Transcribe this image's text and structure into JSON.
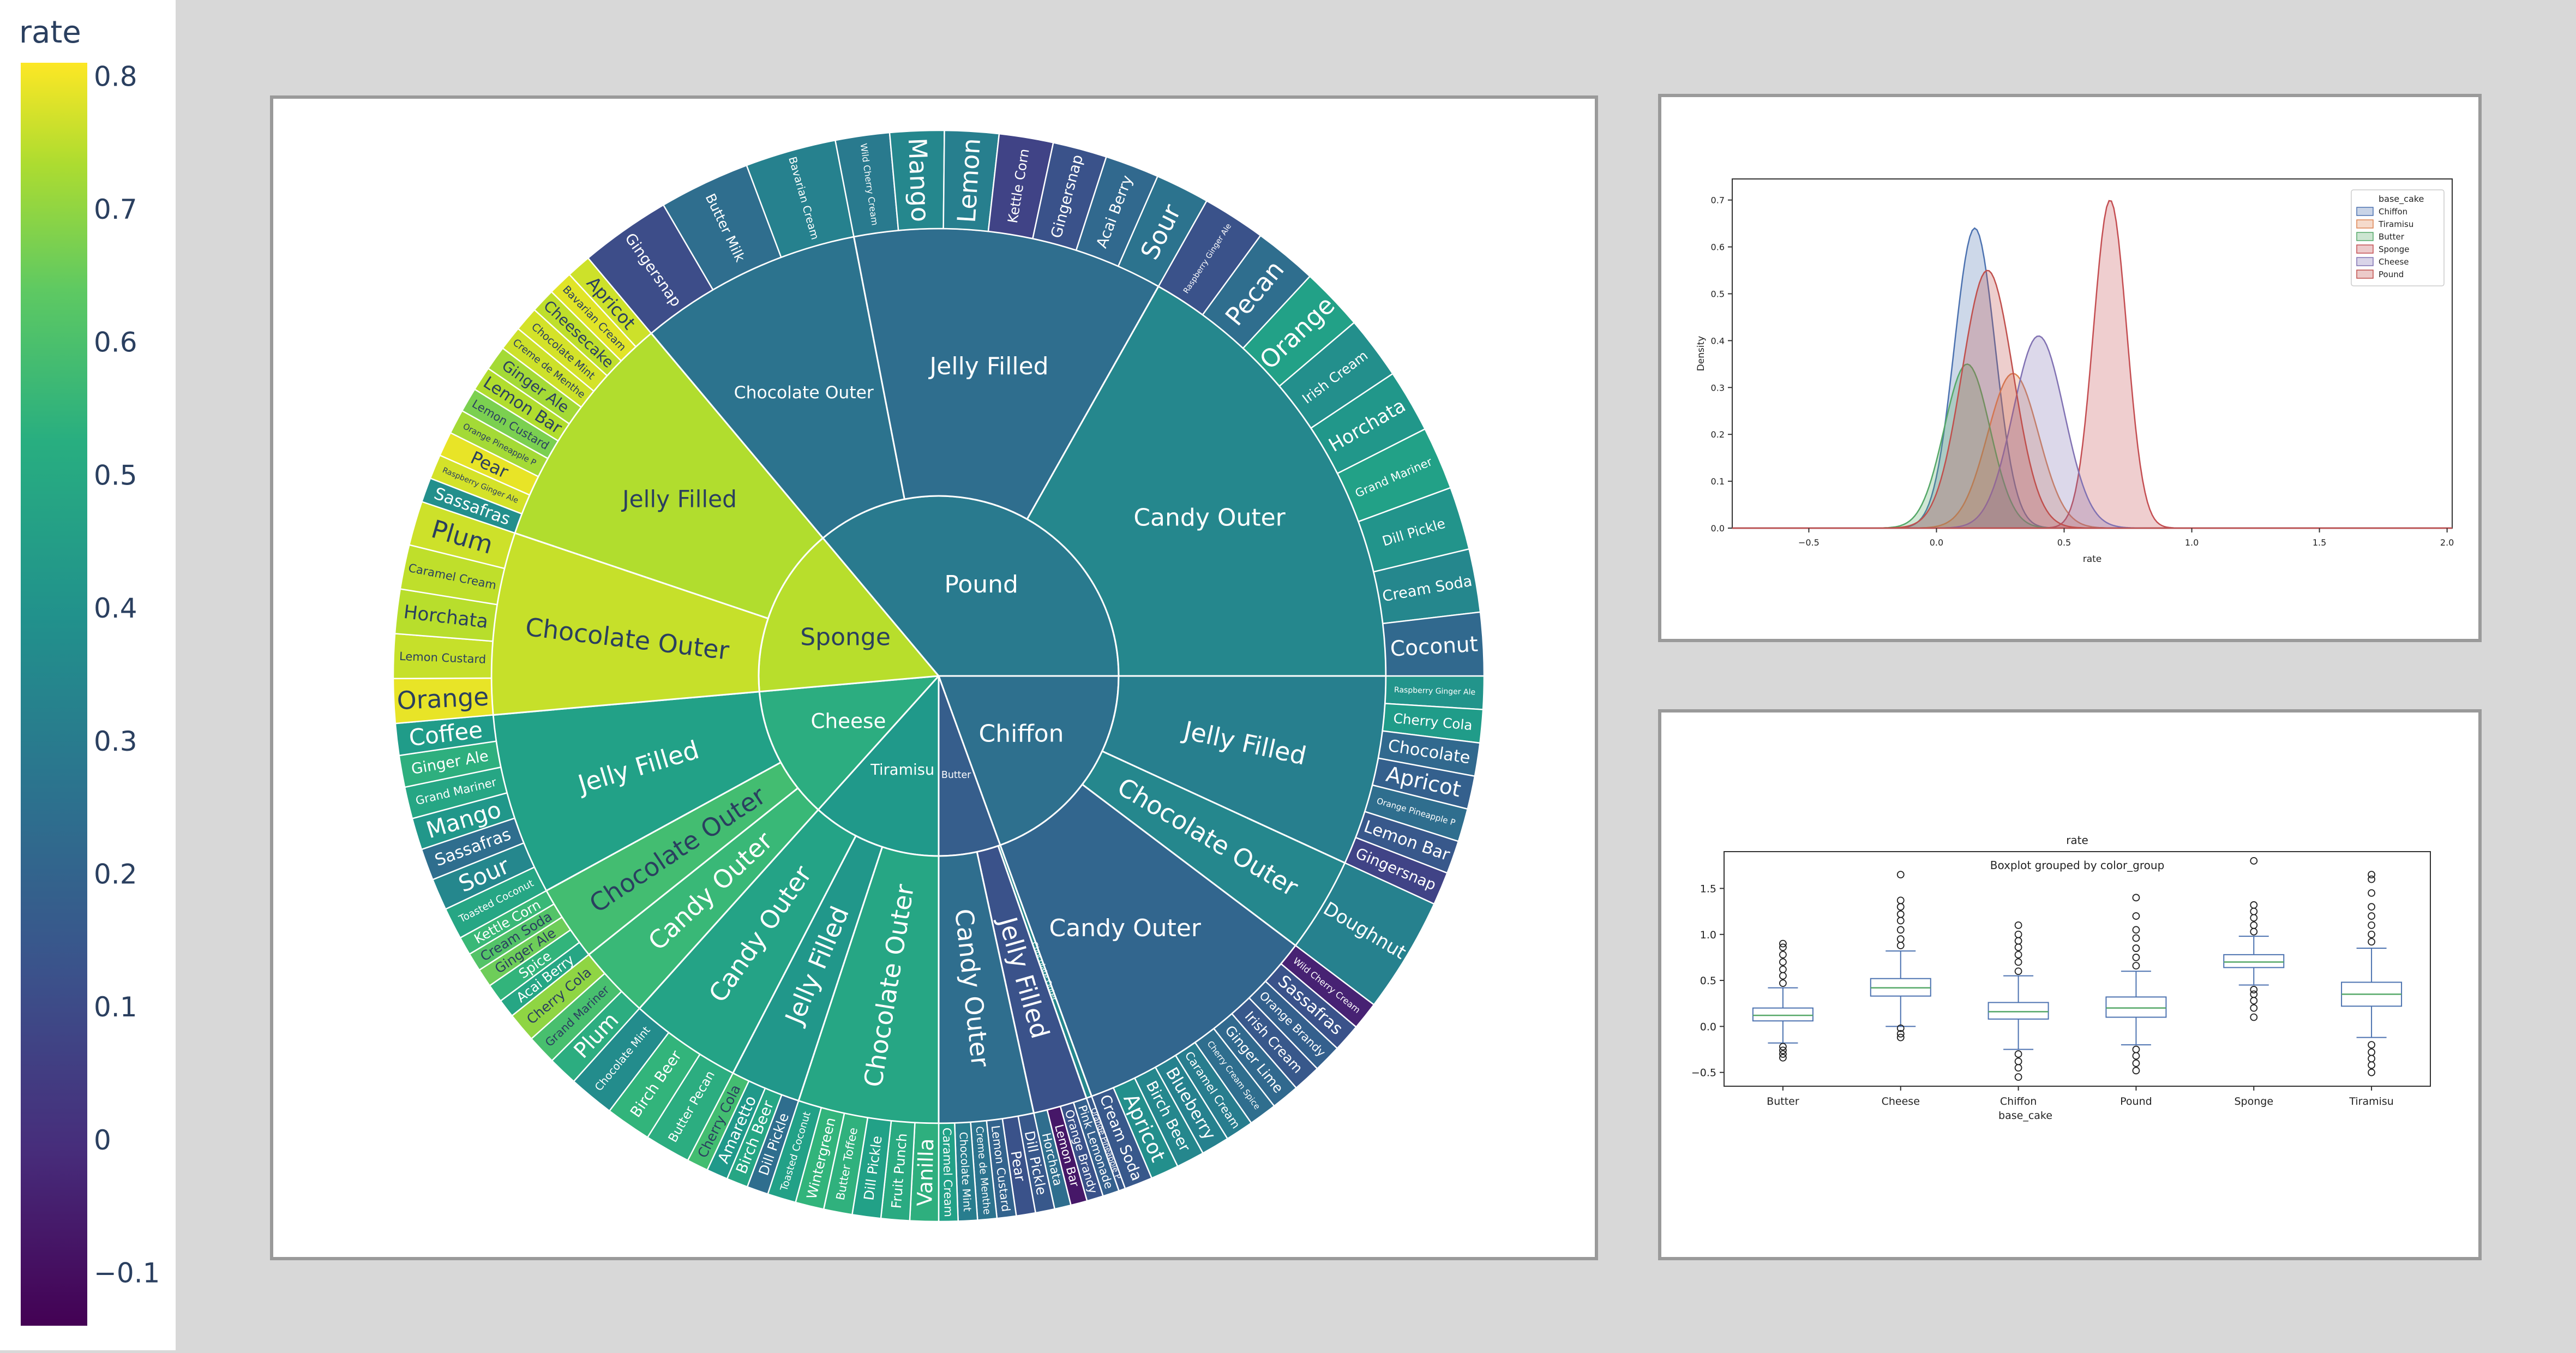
{
  "colorbar": {
    "title": "rate",
    "ticks": [
      "0.8",
      "0.7",
      "0.6",
      "0.5",
      "0.4",
      "0.3",
      "0.2",
      "0.1",
      "0",
      "−0.1"
    ],
    "tick_values": [
      0.8,
      0.7,
      0.6,
      0.5,
      0.4,
      0.3,
      0.2,
      0.1,
      0,
      -0.1
    ],
    "range": [
      -0.14,
      0.81
    ]
  },
  "chart_data": [
    {
      "type": "sunburst",
      "color_metric": "rate",
      "root": [
        {
          "name": "Chiffon",
          "rate": 0.21,
          "children": [
            {
              "name": "Jelly Filled",
              "rate": 0.27,
              "children": [
                {
                  "name": "Raspberry Ginger Ale",
                  "rate": 0.35
                },
                {
                  "name": "Cherry Cola",
                  "rate": 0.38
                },
                {
                  "name": "Chocolate",
                  "rate": 0.18
                },
                {
                  "name": "Apricot",
                  "rate": 0.15
                },
                {
                  "name": "Orange Pineapple P",
                  "rate": 0.2
                },
                {
                  "name": "Lemon Bar",
                  "rate": 0.12
                },
                {
                  "name": "Gingersnap",
                  "rate": 0.05
                }
              ]
            },
            {
              "name": "Chocolate Outer",
              "rate": 0.3,
              "children": [
                {
                  "name": "Doughnut",
                  "rate": 0.28
                }
              ]
            },
            {
              "name": "Candy Outer",
              "rate": 0.17,
              "children": [
                {
                  "name": "Wild Cherry Cream",
                  "rate": -0.05
                },
                {
                  "name": "Sassafras",
                  "rate": 0.1
                },
                {
                  "name": "Orange Brandy",
                  "rate": 0.15
                },
                {
                  "name": "Irish Cream",
                  "rate": 0.12
                },
                {
                  "name": "Ginger Lime",
                  "rate": 0.18
                },
                {
                  "name": "Cherry Cream Spice",
                  "rate": 0.2
                },
                {
                  "name": "Caramel Cream",
                  "rate": 0.26
                },
                {
                  "name": "Blueberry",
                  "rate": 0.28
                },
                {
                  "name": "Birch Beer",
                  "rate": 0.3
                },
                {
                  "name": "Apricot",
                  "rate": 0.33
                },
                {
                  "name": "Cream Soda",
                  "rate": 0.12
                }
              ]
            }
          ]
        },
        {
          "name": "Butter",
          "rate": 0.14,
          "children": [
            {
              "name": "Chocolate Outer",
              "rate": 0.3,
              "children": [
                {
                  "name": "Orange Pineapple P",
                  "rate": 0.12
                }
              ]
            },
            {
              "name": "Jelly Filled",
              "rate": 0.1,
              "children": [
                {
                  "name": "Pink Lemonade",
                  "rate": 0.15
                },
                {
                  "name": "Orange Brandy",
                  "rate": 0.1
                },
                {
                  "name": "Lemon Bar",
                  "rate": -0.08
                },
                {
                  "name": "Horchata",
                  "rate": 0.2
                }
              ]
            },
            {
              "name": "Candy Outer",
              "rate": 0.2,
              "children": [
                {
                  "name": "Dill Pickle",
                  "rate": 0.12
                },
                {
                  "name": "Pear",
                  "rate": 0.1
                },
                {
                  "name": "Lemon Custard",
                  "rate": 0.16
                },
                {
                  "name": "Creme de Menthe",
                  "rate": 0.22
                },
                {
                  "name": "Chocolate Mint",
                  "rate": 0.26
                },
                {
                  "name": "Caramel Cream",
                  "rate": 0.4
                }
              ]
            }
          ]
        },
        {
          "name": "Tiramisu",
          "rate": 0.37,
          "children": [
            {
              "name": "Chocolate Outer",
              "rate": 0.42,
              "children": [
                {
                  "name": "Vanilla",
                  "rate": 0.46
                },
                {
                  "name": "Fruit Punch",
                  "rate": 0.44
                },
                {
                  "name": "Dill Pickle",
                  "rate": 0.4
                },
                {
                  "name": "Butter Toffee",
                  "rate": 0.47
                },
                {
                  "name": "Wintergreen",
                  "rate": 0.48
                },
                {
                  "name": "Toasted Coconut",
                  "rate": 0.4
                }
              ]
            },
            {
              "name": "Jelly Filled",
              "rate": 0.36,
              "children": [
                {
                  "name": "Dill Pickle",
                  "rate": 0.2
                },
                {
                  "name": "Birch Beer",
                  "rate": 0.42
                },
                {
                  "name": "Amaretto",
                  "rate": 0.37
                },
                {
                  "name": "Cherry Cola",
                  "rate": 0.52
                }
              ]
            },
            {
              "name": "Candy Outer",
              "rate": 0.41,
              "children": [
                {
                  "name": "Butter Pecan",
                  "rate": 0.45
                },
                {
                  "name": "Birch Beer",
                  "rate": 0.48
                },
                {
                  "name": "Chocolate Mint",
                  "rate": 0.32
                }
              ]
            }
          ]
        },
        {
          "name": "Cheese",
          "rate": 0.45,
          "children": [
            {
              "name": "Candy Outer",
              "rate": 0.5,
              "children": [
                {
                  "name": "Plum",
                  "rate": 0.45
                },
                {
                  "name": "Grand Mariner",
                  "rate": 0.53
                },
                {
                  "name": "Cherry Cola",
                  "rate": 0.65
                }
              ]
            },
            {
              "name": "Chocolate Outer",
              "rate": 0.52,
              "children": [
                {
                  "name": "Acai Berry",
                  "rate": 0.42
                },
                {
                  "name": "Spice",
                  "rate": 0.48
                },
                {
                  "name": "Ginger Ale",
                  "rate": 0.6
                },
                {
                  "name": "Cream Soda",
                  "rate": 0.55
                },
                {
                  "name": "Kettle Corn",
                  "rate": 0.5
                }
              ]
            },
            {
              "name": "Jelly Filled",
              "rate": 0.4,
              "children": [
                {
                  "name": "Toasted Coconut",
                  "rate": 0.42
                },
                {
                  "name": "Sour",
                  "rate": 0.3
                },
                {
                  "name": "Sassafras",
                  "rate": 0.2
                },
                {
                  "name": "Mango",
                  "rate": 0.36
                },
                {
                  "name": "Grand Mariner",
                  "rate": 0.42
                },
                {
                  "name": "Ginger Ale",
                  "rate": 0.46
                },
                {
                  "name": "Coffee",
                  "rate": 0.38
                }
              ]
            }
          ]
        },
        {
          "name": "Sponge",
          "rate": 0.71,
          "children": [
            {
              "name": "Chocolate Outer",
              "rate": 0.73,
              "children": [
                {
                  "name": "Orange",
                  "rate": 0.78
                },
                {
                  "name": "Lemon Custard",
                  "rate": 0.73
                },
                {
                  "name": "Horchata",
                  "rate": 0.71
                },
                {
                  "name": "Caramel Cream",
                  "rate": 0.72
                },
                {
                  "name": "Plum",
                  "rate": 0.74
                }
              ]
            },
            {
              "name": "Jelly Filled",
              "rate": 0.7,
              "children": [
                {
                  "name": "Sassafras",
                  "rate": 0.33
                },
                {
                  "name": "Raspberry Ginger Ale",
                  "rate": 0.75
                },
                {
                  "name": "Pear",
                  "rate": 0.78
                },
                {
                  "name": "Orange Pineapple P",
                  "rate": 0.68
                },
                {
                  "name": "Lemon Custard",
                  "rate": 0.62
                },
                {
                  "name": "Lemon Bar",
                  "rate": 0.7
                },
                {
                  "name": "Ginger Ale",
                  "rate": 0.68
                },
                {
                  "name": "Creme de Menthe",
                  "rate": 0.74
                },
                {
                  "name": "Chocolate Mint",
                  "rate": 0.75
                },
                {
                  "name": "Cheesecake",
                  "rate": 0.72
                },
                {
                  "name": "Bavarian Cream",
                  "rate": 0.77
                },
                {
                  "name": "Apricot",
                  "rate": 0.74
                }
              ]
            }
          ]
        },
        {
          "name": "Pound",
          "rate": 0.25,
          "children": [
            {
              "name": "Chocolate Outer",
              "rate": 0.22,
              "children": [
                {
                  "name": "Gingersnap",
                  "rate": 0.08
                },
                {
                  "name": "Butter Milk",
                  "rate": 0.2
                },
                {
                  "name": "Bavarian Cream",
                  "rate": 0.28
                }
              ]
            },
            {
              "name": "Jelly Filled",
              "rate": 0.2,
              "children": [
                {
                  "name": "Wild Cherry Cream",
                  "rate": 0.25
                },
                {
                  "name": "Mango",
                  "rate": 0.3
                },
                {
                  "name": "Lemon",
                  "rate": 0.27
                },
                {
                  "name": "Kettle Corn",
                  "rate": 0.05
                },
                {
                  "name": "Gingersnap",
                  "rate": 0.1
                },
                {
                  "name": "Acai Berry",
                  "rate": 0.18
                },
                {
                  "name": "Sour",
                  "rate": 0.22
                }
              ]
            },
            {
              "name": "Candy Outer",
              "rate": 0.3,
              "children": [
                {
                  "name": "Raspberry Ginger Ale",
                  "rate": 0.1
                },
                {
                  "name": "Pecan",
                  "rate": 0.2
                },
                {
                  "name": "Orange",
                  "rate": 0.4
                },
                {
                  "name": "Irish Cream",
                  "rate": 0.33
                },
                {
                  "name": "Horchata",
                  "rate": 0.36
                },
                {
                  "name": "Grand Mariner",
                  "rate": 0.4
                },
                {
                  "name": "Dill Pickle",
                  "rate": 0.35
                },
                {
                  "name": "Cream Soda",
                  "rate": 0.3
                },
                {
                  "name": "Coconut",
                  "rate": 0.18
                }
              ]
            }
          ]
        }
      ]
    },
    {
      "type": "area",
      "subtype": "kde",
      "xlabel": "rate",
      "ylabel": "Density",
      "xticks": [
        "−0.5",
        "0.0",
        "0.5",
        "1.0",
        "1.5",
        "2.0"
      ],
      "xtick_values": [
        -0.5,
        0,
        0.5,
        1,
        1.5,
        2
      ],
      "yticks": [
        "0.0",
        "0.1",
        "0.2",
        "0.3",
        "0.4",
        "0.5",
        "0.6",
        "0.7"
      ],
      "ytick_values": [
        0,
        0.1,
        0.2,
        0.3,
        0.4,
        0.5,
        0.6,
        0.7
      ],
      "xlim": [
        -0.8,
        2.02
      ],
      "ylim": [
        0,
        0.745
      ],
      "legend": {
        "title": "base_cake",
        "position": "top-right"
      },
      "series": [
        {
          "name": "Chiffon",
          "color": "#4c72b0",
          "mean": 0.15,
          "sd": 0.08,
          "peak": 0.64
        },
        {
          "name": "Tiramisu",
          "color": "#dd8452",
          "mean": 0.3,
          "sd": 0.1,
          "peak": 0.33
        },
        {
          "name": "Butter",
          "color": "#55a868",
          "mean": 0.12,
          "sd": 0.09,
          "peak": 0.35
        },
        {
          "name": "Sponge",
          "color": "#c44e52",
          "mean": 0.68,
          "sd": 0.065,
          "peak": 0.7
        },
        {
          "name": "Cheese",
          "color": "#8172b3",
          "mean": 0.4,
          "sd": 0.1,
          "peak": 0.41
        },
        {
          "name": "Pound",
          "color": "#c0504d",
          "mean": 0.2,
          "sd": 0.1,
          "peak": 0.55
        }
      ]
    },
    {
      "type": "box",
      "title": "rate",
      "suptitle": "Boxplot grouped by color_group",
      "xlabel": "base_cake",
      "yticks": [
        "−0.5",
        "0.0",
        "0.5",
        "1.0",
        "1.5"
      ],
      "ytick_values": [
        -0.5,
        0,
        0.5,
        1,
        1.5
      ],
      "ylim": [
        -0.65,
        1.9
      ],
      "categories": [
        "Butter",
        "Cheese",
        "Chiffon",
        "Pound",
        "Sponge",
        "Tiramisu"
      ],
      "boxes": [
        {
          "q1": 0.06,
          "median": 0.12,
          "q3": 0.2,
          "wlo": -0.18,
          "whi": 0.42,
          "outliers": [
            -0.22,
            -0.26,
            -0.3,
            -0.34,
            0.47,
            0.55,
            0.62,
            0.7,
            0.78,
            0.86,
            0.9
          ]
        },
        {
          "q1": 0.33,
          "median": 0.42,
          "q3": 0.52,
          "wlo": 0.0,
          "whi": 0.82,
          "outliers": [
            -0.02,
            -0.08,
            -0.12,
            0.88,
            0.95,
            1.05,
            1.15,
            1.22,
            1.3,
            1.37,
            1.65
          ]
        },
        {
          "q1": 0.08,
          "median": 0.16,
          "q3": 0.26,
          "wlo": -0.25,
          "whi": 0.55,
          "outliers": [
            -0.3,
            -0.38,
            -0.45,
            -0.55,
            0.6,
            0.7,
            0.78,
            0.86,
            0.93,
            1.0,
            1.1
          ]
        },
        {
          "q1": 0.1,
          "median": 0.2,
          "q3": 0.32,
          "wlo": -0.2,
          "whi": 0.6,
          "outliers": [
            -0.25,
            -0.32,
            -0.4,
            -0.48,
            0.66,
            0.75,
            0.85,
            0.96,
            1.05,
            1.2,
            1.4
          ]
        },
        {
          "q1": 0.64,
          "median": 0.7,
          "q3": 0.78,
          "wlo": 0.45,
          "whi": 0.98,
          "outliers": [
            0.1,
            0.2,
            0.28,
            0.35,
            0.4,
            1.03,
            1.1,
            1.18,
            1.25,
            1.32,
            1.8
          ]
        },
        {
          "q1": 0.22,
          "median": 0.35,
          "q3": 0.48,
          "wlo": -0.12,
          "whi": 0.85,
          "outliers": [
            -0.2,
            -0.28,
            -0.35,
            -0.42,
            -0.5,
            0.92,
            1.0,
            1.1,
            1.2,
            1.3,
            1.45,
            1.6,
            1.65
          ]
        }
      ],
      "colors": {
        "box": "#4c72b0",
        "median": "#55a868"
      }
    }
  ]
}
